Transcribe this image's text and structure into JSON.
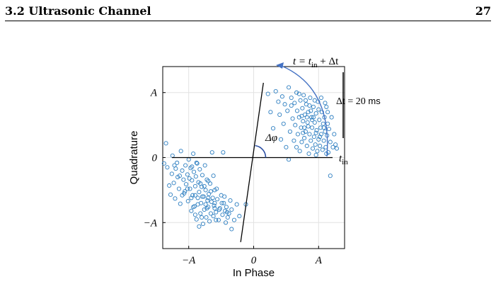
{
  "page_header": {
    "section_title": "3.2 Ultrasonic Channel",
    "page_number": "27"
  },
  "chart_data": {
    "type": "scatter",
    "title": "",
    "xlabel": "In Phase",
    "ylabel": "Quadrature",
    "x_ticks": [
      {
        "label": "−A",
        "value": -1
      },
      {
        "label": "0",
        "value": 0
      },
      {
        "label": "A",
        "value": 1
      }
    ],
    "y_ticks": [
      {
        "label": "A",
        "value": 1
      },
      {
        "label": "0",
        "value": 0
      },
      {
        "label": "−A",
        "value": -1
      }
    ],
    "xlim": [
      -1.4,
      1.4
    ],
    "ylim": [
      -1.4,
      1.4
    ],
    "grid": true,
    "marker_color": "#2e7fc1",
    "arc_color": "#4472c4",
    "annotations": {
      "delta_phi": "Δφ",
      "t_in": "t",
      "t_in_sub": "in",
      "t_end_prefix": "t = t",
      "t_end_sub": "in",
      "t_end_suffix": " + Δt",
      "delta_t_prefix": "Δt = 20",
      "delta_t_unit": " ms"
    },
    "reference_line": {
      "x": [
        -1.3,
        -0.6
      ],
      "y": [
        0,
        0
      ]
    },
    "phase_line": {
      "x": [
        -0.2,
        0.15
      ],
      "y": [
        -1.3,
        1.15
      ]
    },
    "cluster_left": [
      [
        -1.38,
        -0.09
      ],
      [
        -1.35,
        0.22
      ],
      [
        -1.33,
        -0.15
      ],
      [
        -1.3,
        -0.43
      ],
      [
        -1.28,
        -0.57
      ],
      [
        -1.26,
        -0.25
      ],
      [
        -1.25,
        0.03
      ],
      [
        -1.23,
        -0.39
      ],
      [
        -1.21,
        -0.63
      ],
      [
        -1.2,
        -0.17
      ],
      [
        -1.18,
        -0.08
      ],
      [
        -1.17,
        -0.3
      ],
      [
        -1.15,
        -0.48
      ],
      [
        -1.13,
        -0.71
      ],
      [
        -1.12,
        0.1
      ],
      [
        -1.1,
        -0.2
      ],
      [
        -1.08,
        -0.34
      ],
      [
        -1.07,
        -0.55
      ],
      [
        -1.05,
        -0.12
      ],
      [
        -1.04,
        -0.41
      ],
      [
        -1.02,
        -0.26
      ],
      [
        -1.01,
        -0.67
      ],
      [
        -1.0,
        -0.03
      ],
      [
        -0.98,
        -0.48
      ],
      [
        -0.97,
        -0.16
      ],
      [
        -0.96,
        -0.82
      ],
      [
        -0.95,
        -0.35
      ],
      [
        -0.94,
        -0.58
      ],
      [
        -0.93,
        0.06
      ],
      [
        -0.92,
        -0.22
      ],
      [
        -0.91,
        -0.75
      ],
      [
        -0.9,
        -0.44
      ],
      [
        -0.89,
        -0.29
      ],
      [
        -0.88,
        -0.95
      ],
      [
        -0.87,
        -0.09
      ],
      [
        -0.86,
        -0.62
      ],
      [
        -0.85,
        -0.38
      ],
      [
        -0.84,
        -0.53
      ],
      [
        -0.83,
        -0.18
      ],
      [
        -0.82,
        -0.86
      ],
      [
        -0.81,
        -0.7
      ],
      [
        -0.8,
        -0.45
      ],
      [
        -0.79,
        -0.27
      ],
      [
        -0.78,
        -1.02
      ],
      [
        -0.77,
        -0.6
      ],
      [
        -0.76,
        -0.8
      ],
      [
        -0.75,
        -0.12
      ],
      [
        -0.74,
        -0.5
      ],
      [
        -0.73,
        -0.92
      ],
      [
        -0.72,
        -0.34
      ],
      [
        -0.71,
        -0.66
      ],
      [
        -0.7,
        -0.76
      ],
      [
        -0.69,
        -0.56
      ],
      [
        -0.68,
        -0.98
      ],
      [
        -0.67,
        -0.4
      ],
      [
        -0.66,
        -0.86
      ],
      [
        -0.65,
        -0.68
      ],
      [
        -0.64,
        0.08
      ],
      [
        -0.63,
        -0.62
      ],
      [
        -0.62,
        -0.9
      ],
      [
        -0.61,
        -0.74
      ],
      [
        -0.6,
        -0.5
      ],
      [
        -0.58,
        -0.84
      ],
      [
        -0.56,
        -0.64
      ],
      [
        -0.54,
        -0.96
      ],
      [
        -0.52,
        -0.78
      ],
      [
        -0.5,
        -0.58
      ],
      [
        -0.48,
        -0.88
      ],
      [
        -0.46,
        -0.7
      ],
      [
        -0.44,
        -0.82
      ],
      [
        -0.42,
        -0.76
      ],
      [
        -0.4,
        -0.92
      ],
      [
        -0.38,
        -0.86
      ],
      [
        -0.36,
        -0.66
      ],
      [
        -0.34,
        -1.1
      ],
      [
        -0.3,
        -0.96
      ],
      [
        -0.26,
        -0.72
      ],
      [
        -0.22,
        -0.9
      ],
      [
        -1.02,
        -0.48
      ],
      [
        -0.99,
        -0.32
      ],
      [
        -0.96,
        -0.62
      ],
      [
        -0.93,
        -0.76
      ],
      [
        -0.9,
        -0.58
      ],
      [
        -0.86,
        -0.72
      ],
      [
        -0.82,
        -0.4
      ],
      [
        -0.8,
        -0.92
      ],
      [
        -0.76,
        -0.44
      ],
      [
        -0.72,
        -0.78
      ],
      [
        -0.7,
        -0.62
      ],
      [
        -0.66,
        -0.52
      ],
      [
        -0.6,
        -0.7
      ],
      [
        -0.57,
        -0.48
      ],
      [
        -0.53,
        -0.8
      ],
      [
        -0.49,
        -0.7
      ],
      [
        -0.45,
        -0.6
      ],
      [
        -0.41,
        -0.84
      ],
      [
        -0.12,
        -0.72
      ],
      [
        -0.47,
        0.08
      ],
      [
        -0.6,
        -0.78
      ],
      [
        -0.9,
        -0.88
      ],
      [
        -1.1,
        -0.58
      ],
      [
        -1.14,
        -0.28
      ],
      [
        -1.06,
        -0.52
      ],
      [
        -0.84,
        -1.06
      ],
      [
        -0.74,
        -0.72
      ],
      [
        -0.58,
        -0.96
      ],
      [
        -0.43,
        -1.0
      ],
      [
        -0.34,
        -0.8
      ],
      [
        -1.22,
        -0.12
      ],
      [
        -0.95,
        -0.14
      ],
      [
        -0.88,
        -0.08
      ],
      [
        -0.79,
        -0.6
      ],
      [
        -0.7,
        -0.36
      ],
      [
        -0.62,
        -0.28
      ]
    ],
    "cluster_right": [
      [
        0.22,
        0.98
      ],
      [
        0.26,
        0.7
      ],
      [
        0.3,
        0.45
      ],
      [
        0.34,
        1.02
      ],
      [
        0.38,
        0.86
      ],
      [
        0.4,
        0.66
      ],
      [
        0.42,
        0.28
      ],
      [
        0.44,
        0.94
      ],
      [
        0.46,
        0.52
      ],
      [
        0.48,
        0.82
      ],
      [
        0.5,
        0.16
      ],
      [
        0.52,
        0.72
      ],
      [
        0.54,
        1.08
      ],
      [
        0.56,
        0.4
      ],
      [
        0.58,
        0.92
      ],
      [
        0.6,
        0.6
      ],
      [
        0.62,
        0.26
      ],
      [
        0.63,
        0.84
      ],
      [
        0.64,
        0.5
      ],
      [
        0.66,
        1.0
      ],
      [
        0.67,
        0.72
      ],
      [
        0.68,
        0.36
      ],
      [
        0.7,
        0.62
      ],
      [
        0.71,
        0.1
      ],
      [
        0.72,
        0.88
      ],
      [
        0.73,
        0.46
      ],
      [
        0.74,
        0.24
      ],
      [
        0.75,
        0.76
      ],
      [
        0.76,
        0.56
      ],
      [
        0.77,
        0.96
      ],
      [
        0.78,
        0.3
      ],
      [
        0.79,
        0.66
      ],
      [
        0.8,
        0.4
      ],
      [
        0.81,
        0.82
      ],
      [
        0.82,
        0.18
      ],
      [
        0.83,
        0.54
      ],
      [
        0.84,
        0.7
      ],
      [
        0.85,
        0.06
      ],
      [
        0.86,
        0.36
      ],
      [
        0.87,
        0.92
      ],
      [
        0.88,
        0.26
      ],
      [
        0.89,
        0.62
      ],
      [
        0.9,
        0.46
      ],
      [
        0.91,
        0.14
      ],
      [
        0.92,
        0.78
      ],
      [
        0.93,
        0.32
      ],
      [
        0.94,
        0.54
      ],
      [
        0.95,
        0.2
      ],
      [
        0.96,
        0.68
      ],
      [
        0.97,
        0.42
      ],
      [
        0.98,
        0.1
      ],
      [
        0.99,
        0.86
      ],
      [
        1.0,
        0.28
      ],
      [
        1.01,
        0.58
      ],
      [
        1.02,
        0.18
      ],
      [
        1.03,
        0.46
      ],
      [
        1.04,
        0.36
      ],
      [
        1.05,
        0.7
      ],
      [
        1.06,
        0.12
      ],
      [
        1.07,
        0.52
      ],
      [
        1.08,
        0.26
      ],
      [
        1.09,
        0.62
      ],
      [
        1.1,
        0.4
      ],
      [
        1.11,
        0.16
      ],
      [
        1.12,
        0.78
      ],
      [
        1.13,
        0.34
      ],
      [
        1.14,
        0.52
      ],
      [
        1.15,
        0.08
      ],
      [
        1.16,
        0.44
      ],
      [
        1.18,
        0.24
      ],
      [
        1.2,
        0.62
      ],
      [
        1.22,
        0.16
      ],
      [
        1.24,
        0.36
      ],
      [
        1.26,
        0.2
      ],
      [
        0.7,
        0.98
      ],
      [
        0.74,
        0.64
      ],
      [
        0.8,
        0.88
      ],
      [
        0.86,
        0.8
      ],
      [
        0.94,
        0.88
      ],
      [
        1.0,
        0.74
      ],
      [
        1.04,
        0.92
      ],
      [
        1.1,
        0.84
      ],
      [
        1.14,
        0.7
      ],
      [
        0.92,
        0.62
      ],
      [
        0.66,
        0.16
      ],
      [
        0.58,
        0.8
      ],
      [
        0.9,
        0.58
      ],
      [
        0.96,
        0.38
      ],
      [
        1.02,
        0.32
      ],
      [
        1.08,
        0.46
      ],
      [
        0.78,
        0.46
      ],
      [
        0.84,
        0.48
      ],
      [
        0.88,
        0.72
      ],
      [
        0.96,
        0.04
      ],
      [
        0.82,
        0.62
      ],
      [
        0.76,
        0.38
      ],
      [
        1.12,
        0.06
      ],
      [
        1.18,
        -0.28
      ],
      [
        1.28,
        0.14
      ],
      [
        0.54,
        -0.03
      ]
    ]
  }
}
